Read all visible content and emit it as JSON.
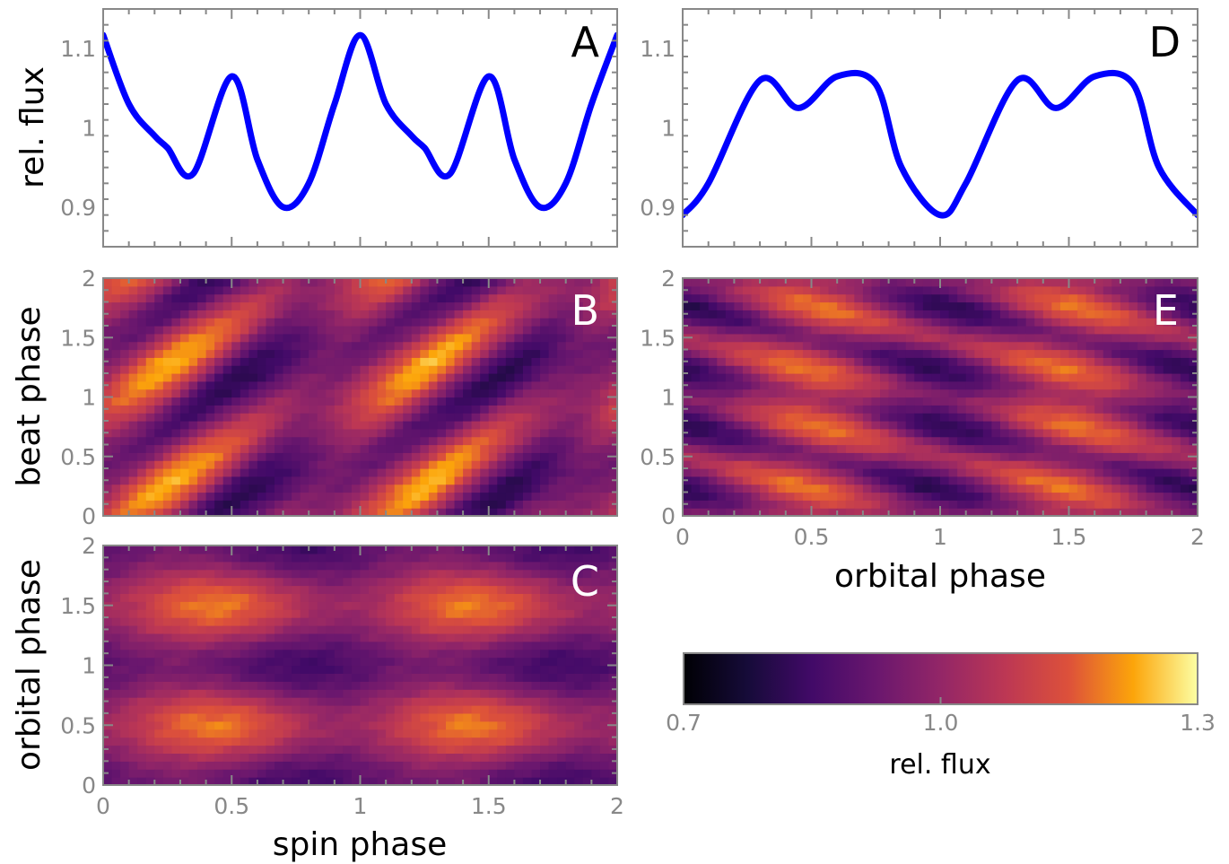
{
  "colors": {
    "line": "#0000ff",
    "frame": "#888888",
    "colormap": "inferno"
  },
  "chart_data": [
    {
      "panel": "A",
      "type": "line",
      "ylabel": "rel. flux",
      "xlabel": "",
      "xlim": [
        0,
        2
      ],
      "ylim": [
        0.85,
        1.15
      ],
      "yticks": [
        {
          "v": 0.9,
          "label": "0.9"
        },
        {
          "v": 1.0,
          "label": "1"
        },
        {
          "v": 1.1,
          "label": "1.1"
        }
      ],
      "x": [
        0,
        0.1,
        0.2,
        0.25,
        0.35,
        0.5,
        0.6,
        0.7,
        0.8,
        0.9,
        1.0,
        1.1,
        1.2,
        1.25,
        1.35,
        1.5,
        1.6,
        1.7,
        1.8,
        1.9,
        2.0
      ],
      "y": [
        1.117,
        1.03,
        0.99,
        0.975,
        0.942,
        1.065,
        0.96,
        0.9,
        0.93,
        1.03,
        1.117,
        1.03,
        0.99,
        0.975,
        0.942,
        1.065,
        0.96,
        0.9,
        0.93,
        1.03,
        1.117
      ]
    },
    {
      "panel": "D",
      "type": "line",
      "ylabel": "",
      "xlabel": "",
      "xlim": [
        0,
        2
      ],
      "ylim": [
        0.85,
        1.15
      ],
      "yticks": [
        {
          "v": 0.9,
          "label": "0.9"
        },
        {
          "v": 1.0,
          "label": "1"
        },
        {
          "v": 1.1,
          "label": "1.1"
        }
      ],
      "x": [
        0,
        0.1,
        0.3,
        0.45,
        0.6,
        0.75,
        0.85,
        1.0,
        1.1,
        1.3,
        1.45,
        1.6,
        1.75,
        1.85,
        2.0
      ],
      "y": [
        0.89,
        0.93,
        1.06,
        1.025,
        1.065,
        1.055,
        0.95,
        0.89,
        0.93,
        1.06,
        1.025,
        1.065,
        1.055,
        0.95,
        0.89
      ]
    },
    {
      "panel": "B",
      "type": "heatmap",
      "ylabel": "beat phase",
      "xlabel": "",
      "xlim": [
        0,
        2
      ],
      "ylim": [
        0,
        2
      ],
      "yticks": [
        {
          "v": 0,
          "label": "0"
        },
        {
          "v": 0.5,
          "label": "0.5"
        },
        {
          "v": 1,
          "label": "1"
        },
        {
          "v": 1.5,
          "label": "1.5"
        },
        {
          "v": 2,
          "label": "2"
        }
      ],
      "value_range": [
        0.7,
        1.3
      ],
      "pattern": "diagonal dark and bright bands, period 1 in both axes, positive slope"
    },
    {
      "panel": "C",
      "type": "heatmap",
      "ylabel": "orbital phase",
      "xlabel": "spin phase",
      "xlim": [
        0,
        2
      ],
      "ylim": [
        0,
        2
      ],
      "xticks": [
        {
          "v": 0,
          "label": "0"
        },
        {
          "v": 0.5,
          "label": "0.5"
        },
        {
          "v": 1,
          "label": "1"
        },
        {
          "v": 1.5,
          "label": "1.5"
        },
        {
          "v": 2,
          "label": "2"
        }
      ],
      "yticks": [
        {
          "v": 0,
          "label": "0"
        },
        {
          "v": 0.5,
          "label": "0.5"
        },
        {
          "v": 1,
          "label": "1"
        },
        {
          "v": 1.5,
          "label": "1.5"
        },
        {
          "v": 2,
          "label": "2"
        }
      ],
      "value_range": [
        0.7,
        1.3
      ],
      "pattern": "bright spots near spin 0.5 at orbital 0.5 and 1.5, dark band near orbital 0 and 1"
    },
    {
      "panel": "E",
      "type": "heatmap",
      "ylabel": "",
      "xlabel": "orbital phase",
      "xlim": [
        0,
        2
      ],
      "ylim": [
        0,
        2
      ],
      "xticks": [
        {
          "v": 0,
          "label": "0"
        },
        {
          "v": 0.5,
          "label": "0.5"
        },
        {
          "v": 1,
          "label": "1"
        },
        {
          "v": 1.5,
          "label": "1.5"
        },
        {
          "v": 2,
          "label": "2"
        }
      ],
      "yticks": [
        {
          "v": 0,
          "label": "0"
        },
        {
          "v": 0.5,
          "label": "0.5"
        },
        {
          "v": 1,
          "label": "1"
        },
        {
          "v": 1.5,
          "label": "1.5"
        },
        {
          "v": 2,
          "label": "2"
        }
      ],
      "value_range": [
        0.7,
        1.3
      ],
      "pattern": "bright diagonal stripes with negative slope, dark blobs near orbital phase 1"
    }
  ],
  "colorbar": {
    "label": "rel. flux",
    "min": 0.7,
    "max": 1.3,
    "ticks": [
      {
        "v": 0.7,
        "label": "0.7"
      },
      {
        "v": 1.0,
        "label": "1.0"
      },
      {
        "v": 1.3,
        "label": "1.3"
      }
    ]
  }
}
